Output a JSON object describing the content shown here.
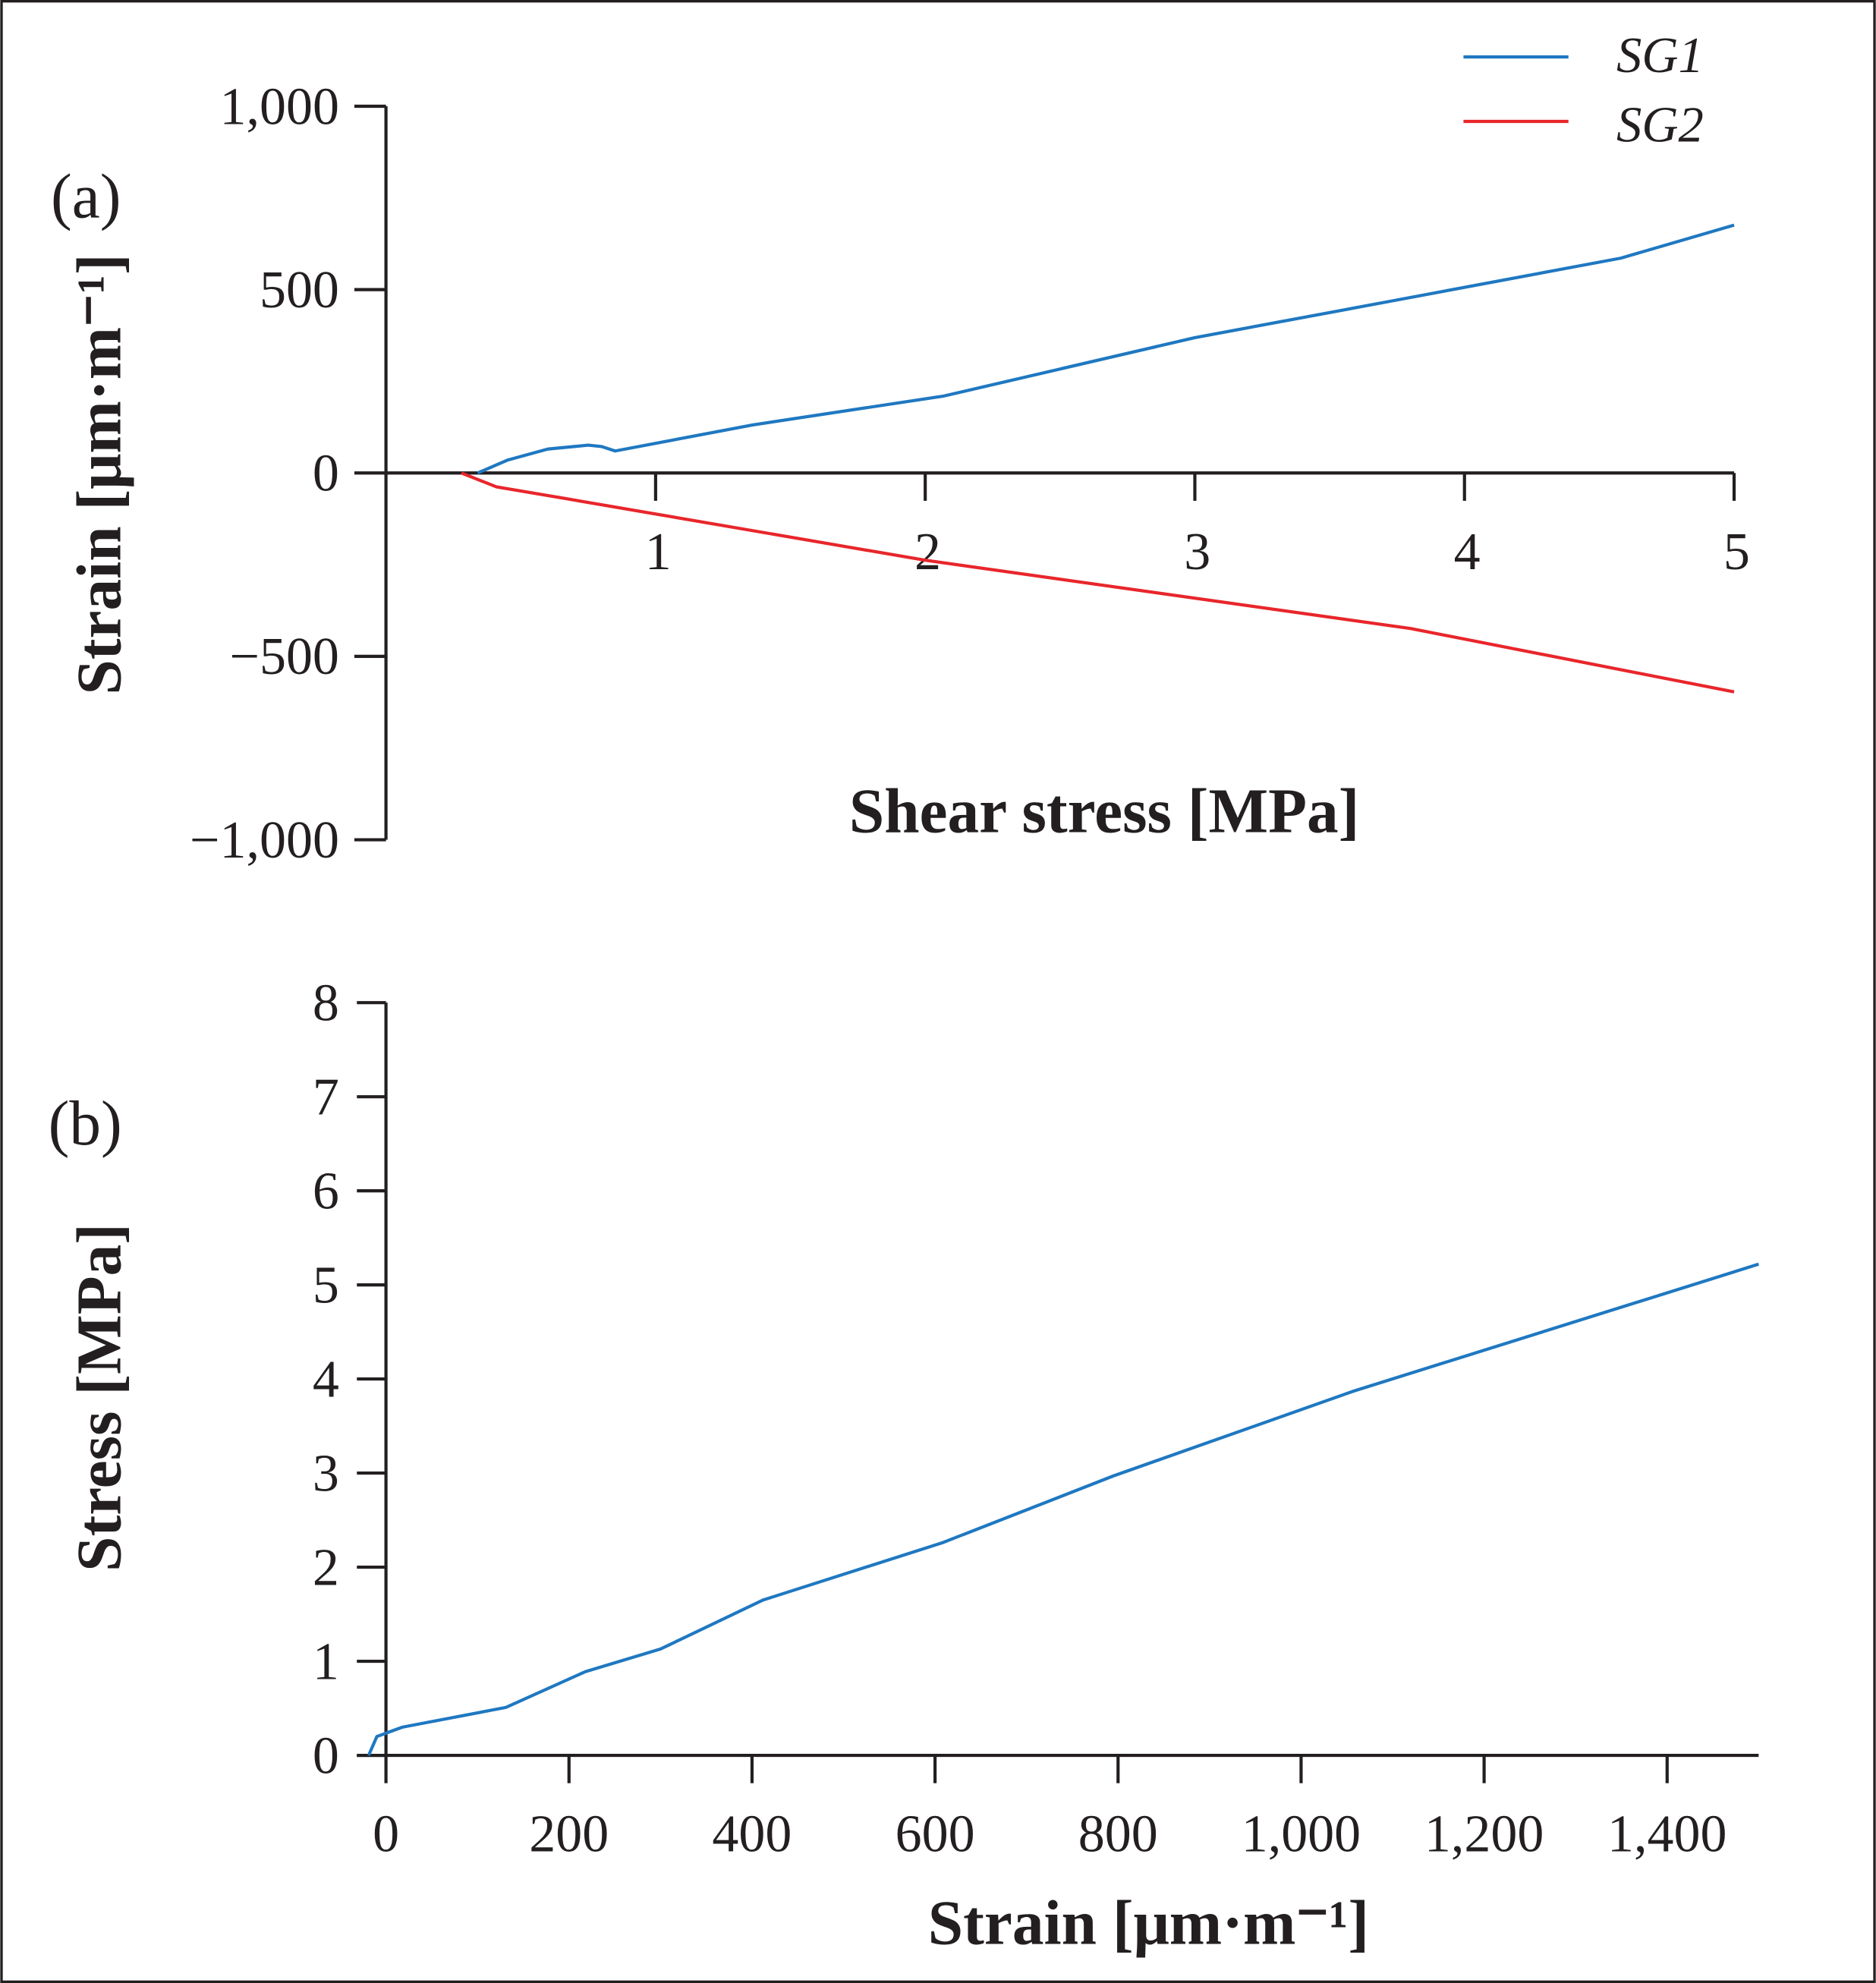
{
  "chart_data": [
    {
      "type": "line",
      "panel_label": "(a)",
      "xlabel": "Shear stress [MPa]",
      "ylabel": "Strain [μm·m⁻¹]",
      "xlim": [
        0,
        5
      ],
      "ylim": [
        -1000,
        1000
      ],
      "xticks": [
        "1",
        "2",
        "3",
        "4",
        "5"
      ],
      "yticks": [
        "1,000",
        "500",
        "0",
        "−500",
        "−1,000"
      ],
      "grid": false,
      "legend_position": "top-right",
      "series": [
        {
          "name": "SG1",
          "color": "#1f78c1",
          "x": [
            0.34,
            0.45,
            0.6,
            0.75,
            0.8,
            0.85,
            1.36,
            2.07,
            3.0,
            3.73,
            4.58,
            5.0
          ],
          "y": [
            0,
            35,
            65,
            76,
            72,
            60,
            131,
            210,
            369,
            469,
            586,
            676
          ]
        },
        {
          "name": "SG2",
          "color": "#e8262b",
          "x": [
            0.28,
            0.41,
            0.66,
            2.0,
            3.8,
            5.0
          ],
          "y": [
            0,
            -38,
            -69,
            -238,
            -424,
            -597
          ]
        }
      ]
    },
    {
      "type": "line",
      "panel_label": "(b)",
      "xlabel": "Strain [μm·m⁻¹]",
      "ylabel": "Stress [MPa]",
      "xlim": [
        -20,
        1500
      ],
      "ylim": [
        0,
        8
      ],
      "xticks": [
        "0",
        "200",
        "400",
        "600",
        "800",
        "1,000",
        "1,200",
        "1,400"
      ],
      "yticks": [
        "0",
        "1",
        "2",
        "3",
        "4",
        "5",
        "6",
        "7",
        "8"
      ],
      "grid": false,
      "series": [
        {
          "color": "#1f78c1",
          "x": [
            -19,
            -10,
            18,
            131,
            218,
            300,
            412,
            608,
            795,
            1057,
            1500
          ],
          "y": [
            0,
            0.2,
            0.3,
            0.51,
            0.89,
            1.13,
            1.65,
            2.26,
            2.97,
            3.87,
            5.22
          ]
        }
      ]
    }
  ]
}
